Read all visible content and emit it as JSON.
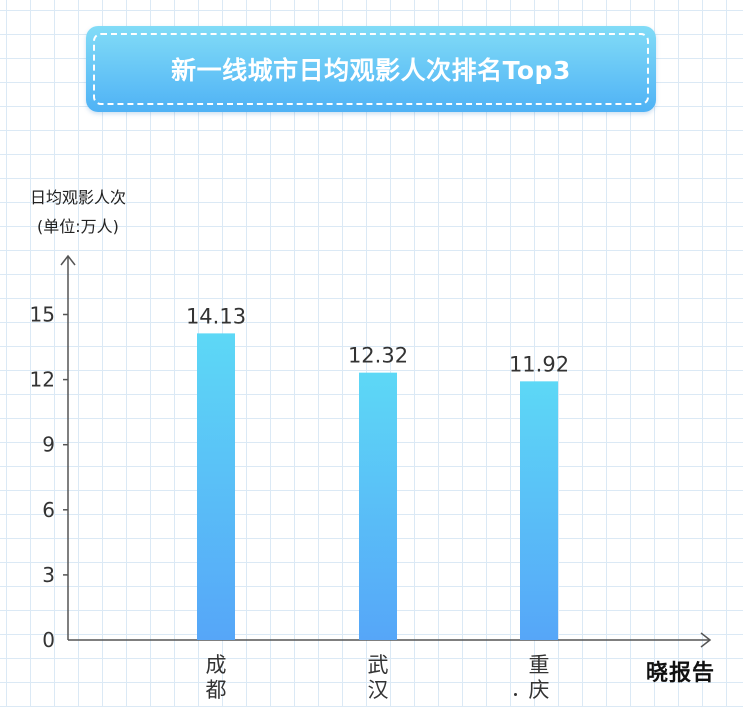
{
  "chart_data": {
    "type": "bar",
    "title": "新一线城市日均观影人次排名Top3",
    "ylabel": "日均观影人次",
    "yunit": "(单位:万人)",
    "categories": [
      "成都",
      "武汉",
      "重庆"
    ],
    "values": [
      14.13,
      12.32,
      11.92
    ],
    "value_labels": [
      "14.13",
      "12.32",
      "11.92"
    ],
    "ylim": [
      0,
      18
    ],
    "yticks": [
      0,
      3,
      6,
      9,
      12,
      15
    ],
    "grid": false,
    "legend": "none",
    "colors": {
      "bar_top": "#5dd8f6",
      "bar_bottom": "#56a6f8",
      "axis": "#555555",
      "text": "#333333"
    }
  },
  "watermark": "晓报告"
}
